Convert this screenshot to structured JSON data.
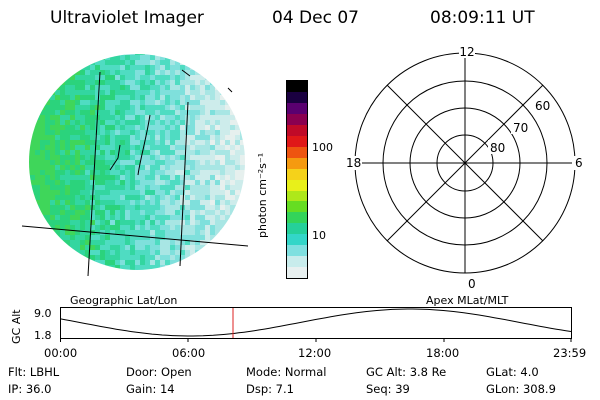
{
  "header": {
    "title": "Ultraviolet Imager",
    "date": "04 Dec 07",
    "time": "08:09:11 UT"
  },
  "colorbar": {
    "unit_label": "photon cm⁻²s⁻¹",
    "ticks": [
      "100",
      "10"
    ],
    "colors": [
      "#e8f0f0",
      "#c8ecec",
      "#7fe0e0",
      "#33d6c8",
      "#25d09a",
      "#33d45a",
      "#66dd22",
      "#aee81a",
      "#e8f01a",
      "#f5d21a",
      "#f59a10",
      "#ee5510",
      "#e01818",
      "#c00a28",
      "#8a0050",
      "#5a0070",
      "#1a0040",
      "#000000"
    ]
  },
  "imager": {
    "left_caption": "Geographic Lat/Lon",
    "right_caption": "Apex MLat/MLT"
  },
  "polar": {
    "mlt_labels": {
      "top": "12",
      "left": "18",
      "right": "6",
      "bottom": "0"
    },
    "lat_labels": [
      "60",
      "70",
      "80"
    ]
  },
  "timeline": {
    "ylabel": "GC Alt",
    "yticks": [
      "9.0",
      "1.8"
    ],
    "xticks": [
      "00:00",
      "06:00",
      "12:00",
      "18:00",
      "23:59"
    ],
    "marker_color": "#dd2222"
  },
  "info": {
    "row1": {
      "flt": "Flt: LBHL",
      "door": "Door: Open",
      "mode": "Mode: Normal",
      "gcalt": "GC Alt: 3.8 Re",
      "glat": "GLat:   4.0"
    },
    "row2": {
      "ip": "IP: 36.0",
      "gain": "Gain: 14",
      "dsp": "Dsp:    7.1",
      "seq": "Seq: 39",
      "glon": "GLon: 308.9"
    }
  }
}
